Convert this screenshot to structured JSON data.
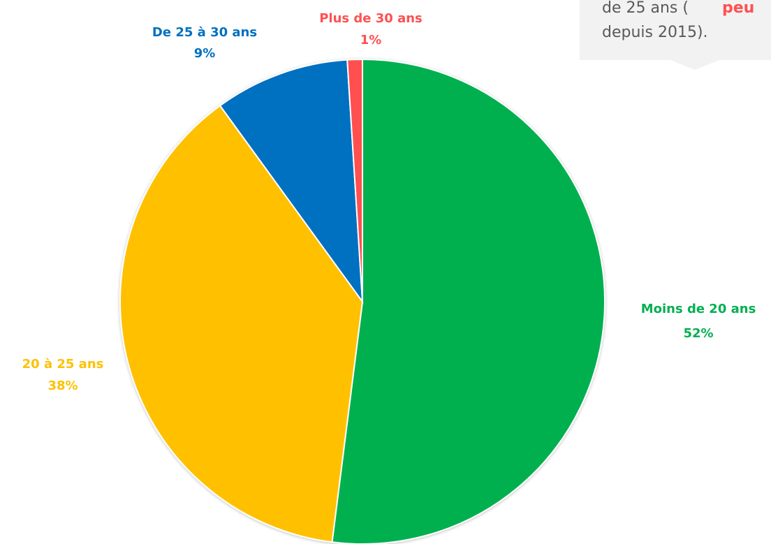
{
  "chart_data": {
    "type": "pie",
    "categories": [
      "Moins de 20 ans",
      "20 à 25 ans",
      "De 25 à 30 ans",
      "Plus de 30 ans"
    ],
    "values": [
      52,
      38,
      9,
      1
    ],
    "value_labels": [
      "52%",
      "38%",
      "9%",
      "1%"
    ],
    "colors": [
      "#00b050",
      "#ffc000",
      "#0070c0",
      "#ff5050"
    ],
    "annotation": [
      "de 25 ans (",
      "peu",
      "depuis 2015)."
    ]
  }
}
